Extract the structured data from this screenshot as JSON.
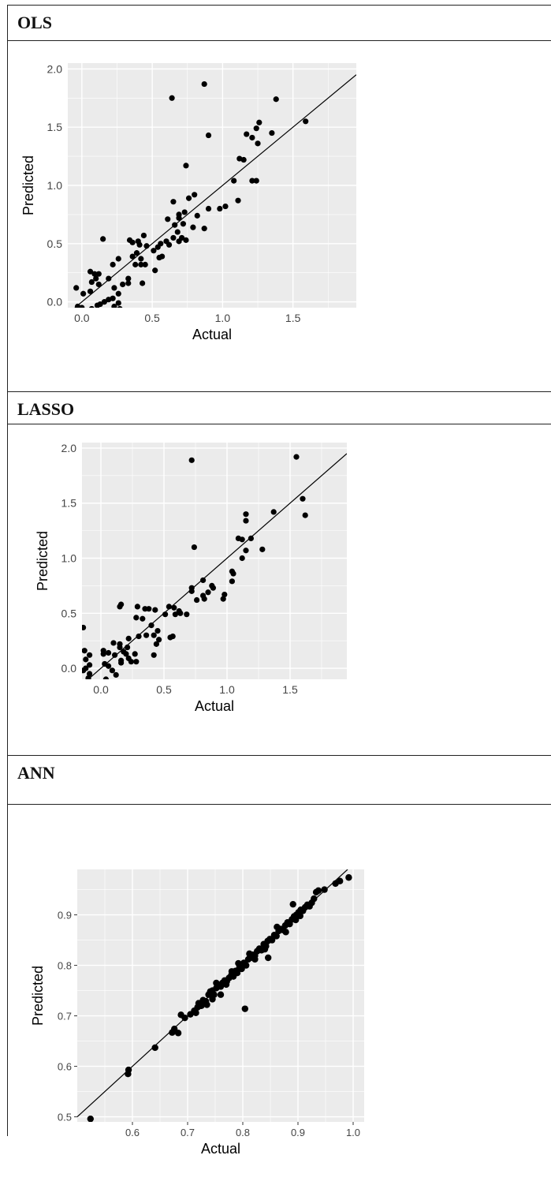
{
  "panels": [
    {
      "label": "OLS"
    },
    {
      "label": "LASSO"
    },
    {
      "label": "ANN"
    }
  ],
  "chart_data": [
    {
      "type": "scatter",
      "xlabel": "Actual",
      "ylabel": "Predicted",
      "xticks": [
        "0.0",
        "0.5",
        "1.0",
        "1.5"
      ],
      "yticks": [
        "0.0",
        "0.5",
        "1.0",
        "1.5",
        "2.0"
      ],
      "xlim": [
        -0.1,
        1.95
      ],
      "ylim": [
        -0.05,
        2.05
      ],
      "grid": true,
      "reference_line": "y = x",
      "points": [
        [
          0.87,
          1.87
        ],
        [
          0.64,
          1.75
        ],
        [
          1.38,
          1.74
        ],
        [
          1.59,
          1.55
        ],
        [
          1.26,
          1.54
        ],
        [
          1.24,
          1.49
        ],
        [
          1.35,
          1.45
        ],
        [
          0.9,
          1.43
        ],
        [
          1.17,
          1.44
        ],
        [
          1.21,
          1.41
        ],
        [
          1.25,
          1.36
        ],
        [
          1.12,
          1.23
        ],
        [
          1.15,
          1.22
        ],
        [
          0.74,
          1.17
        ],
        [
          1.08,
          1.04
        ],
        [
          1.21,
          1.04
        ],
        [
          1.24,
          1.04
        ],
        [
          0.8,
          0.92
        ],
        [
          0.76,
          0.89
        ],
        [
          1.11,
          0.87
        ],
        [
          0.65,
          0.86
        ],
        [
          1.02,
          0.82
        ],
        [
          0.9,
          0.8
        ],
        [
          0.98,
          0.8
        ],
        [
          0.73,
          0.77
        ],
        [
          0.69,
          0.75
        ],
        [
          0.82,
          0.74
        ],
        [
          0.69,
          0.72
        ],
        [
          0.61,
          0.71
        ],
        [
          0.72,
          0.67
        ],
        [
          0.66,
          0.66
        ],
        [
          0.79,
          0.64
        ],
        [
          0.87,
          0.63
        ],
        [
          0.68,
          0.6
        ],
        [
          0.65,
          0.55
        ],
        [
          0.71,
          0.55
        ],
        [
          0.6,
          0.52
        ],
        [
          0.56,
          0.5
        ],
        [
          0.69,
          0.52
        ],
        [
          0.74,
          0.53
        ],
        [
          0.44,
          0.57
        ],
        [
          0.15,
          0.54
        ],
        [
          0.34,
          0.53
        ],
        [
          0.4,
          0.52
        ],
        [
          0.36,
          0.51
        ],
        [
          0.41,
          0.49
        ],
        [
          0.46,
          0.48
        ],
        [
          0.62,
          0.49
        ],
        [
          0.54,
          0.47
        ],
        [
          0.51,
          0.44
        ],
        [
          0.39,
          0.42
        ],
        [
          0.36,
          0.39
        ],
        [
          0.42,
          0.37
        ],
        [
          0.55,
          0.38
        ],
        [
          0.57,
          0.39
        ],
        [
          0.26,
          0.37
        ],
        [
          0.22,
          0.32
        ],
        [
          0.42,
          0.32
        ],
        [
          0.45,
          0.32
        ],
        [
          0.38,
          0.32
        ],
        [
          0.52,
          0.27
        ],
        [
          0.06,
          0.26
        ],
        [
          0.09,
          0.24
        ],
        [
          0.12,
          0.24
        ],
        [
          0.1,
          0.2
        ],
        [
          0.33,
          0.2
        ],
        [
          0.19,
          0.2
        ],
        [
          0.07,
          0.17
        ],
        [
          0.12,
          0.15
        ],
        [
          0.43,
          0.16
        ],
        [
          0.29,
          0.15
        ],
        [
          0.33,
          0.16
        ],
        [
          0.23,
          0.12
        ],
        [
          -0.04,
          0.12
        ],
        [
          0.06,
          0.09
        ],
        [
          0.01,
          0.07
        ],
        [
          0.26,
          0.07
        ],
        [
          0.22,
          0.03
        ],
        [
          0.19,
          0.02
        ],
        [
          0.16,
          0.0
        ],
        [
          0.26,
          -0.01
        ],
        [
          0.13,
          -0.02
        ],
        [
          0.11,
          -0.03
        ],
        [
          -0.03,
          -0.04
        ],
        [
          0.07,
          -0.06
        ],
        [
          0.23,
          -0.04
        ],
        [
          0.0,
          -0.05
        ],
        [
          0.27,
          -0.06
        ]
      ]
    },
    {
      "type": "scatter",
      "xlabel": "Actual",
      "ylabel": "Predicted",
      "xticks": [
        "0.0",
        "0.5",
        "1.0",
        "1.5"
      ],
      "yticks": [
        "0.0",
        "0.5",
        "1.0",
        "1.5",
        "2.0"
      ],
      "xlim": [
        -0.15,
        1.95
      ],
      "ylim": [
        -0.1,
        2.05
      ],
      "grid": true,
      "reference_line": "y = x",
      "points": [
        [
          0.72,
          1.89
        ],
        [
          1.55,
          1.92
        ],
        [
          1.6,
          1.54
        ],
        [
          1.62,
          1.39
        ],
        [
          1.37,
          1.42
        ],
        [
          1.15,
          1.4
        ],
        [
          1.15,
          1.34
        ],
        [
          1.19,
          1.18
        ],
        [
          1.09,
          1.18
        ],
        [
          1.12,
          1.17
        ],
        [
          1.28,
          1.08
        ],
        [
          1.15,
          1.07
        ],
        [
          0.74,
          1.1
        ],
        [
          1.12,
          1.0
        ],
        [
          1.04,
          0.88
        ],
        [
          1.05,
          0.86
        ],
        [
          1.04,
          0.79
        ],
        [
          0.98,
          0.67
        ],
        [
          0.97,
          0.63
        ],
        [
          0.81,
          0.8
        ],
        [
          0.88,
          0.75
        ],
        [
          0.89,
          0.73
        ],
        [
          0.85,
          0.69
        ],
        [
          0.81,
          0.66
        ],
        [
          0.82,
          0.63
        ],
        [
          0.72,
          0.73
        ],
        [
          0.72,
          0.7
        ],
        [
          0.76,
          0.62
        ],
        [
          0.16,
          0.58
        ],
        [
          0.15,
          0.56
        ],
        [
          0.29,
          0.56
        ],
        [
          0.35,
          0.54
        ],
        [
          0.38,
          0.54
        ],
        [
          0.43,
          0.53
        ],
        [
          0.54,
          0.56
        ],
        [
          0.58,
          0.55
        ],
        [
          0.62,
          0.52
        ],
        [
          0.59,
          0.49
        ],
        [
          0.63,
          0.5
        ],
        [
          0.68,
          0.49
        ],
        [
          0.51,
          0.49
        ],
        [
          0.28,
          0.46
        ],
        [
          0.33,
          0.45
        ],
        [
          0.4,
          0.39
        ],
        [
          0.42,
          0.3
        ],
        [
          0.45,
          0.34
        ],
        [
          0.36,
          0.3
        ],
        [
          0.46,
          0.26
        ],
        [
          0.55,
          0.28
        ],
        [
          0.57,
          0.29
        ],
        [
          0.3,
          0.29
        ],
        [
          0.22,
          0.27
        ],
        [
          0.44,
          0.22
        ],
        [
          0.1,
          0.23
        ],
        [
          0.15,
          0.22
        ],
        [
          0.15,
          0.19
        ],
        [
          0.21,
          0.19
        ],
        [
          0.18,
          0.15
        ],
        [
          0.2,
          0.13
        ],
        [
          0.11,
          0.12
        ],
        [
          0.27,
          0.13
        ],
        [
          0.42,
          0.12
        ],
        [
          0.22,
          0.09
        ],
        [
          0.16,
          0.07
        ],
        [
          0.24,
          0.06
        ],
        [
          0.28,
          0.06
        ],
        [
          0.02,
          0.16
        ],
        [
          0.02,
          0.13
        ],
        [
          0.06,
          0.14
        ],
        [
          -0.13,
          0.16
        ],
        [
          -0.09,
          0.12
        ],
        [
          -0.12,
          0.08
        ],
        [
          -0.09,
          0.03
        ],
        [
          -0.12,
          0.0
        ],
        [
          0.03,
          0.04
        ],
        [
          0.06,
          0.02
        ],
        [
          0.16,
          0.05
        ],
        [
          -0.14,
          0.37
        ],
        [
          -0.14,
          -0.02
        ],
        [
          -0.09,
          -0.05
        ],
        [
          0.12,
          -0.06
        ],
        [
          0.09,
          -0.02
        ],
        [
          -0.1,
          -0.09
        ],
        [
          0.04,
          -0.1
        ]
      ]
    },
    {
      "type": "scatter",
      "xlabel": "Actual",
      "ylabel": "Predicted",
      "xticks": [
        "0.6",
        "0.7",
        "0.8",
        "0.9",
        "1.0"
      ],
      "yticks": [
        "0.5",
        "0.6",
        "0.7",
        "0.8",
        "0.9"
      ],
      "xlim": [
        0.5,
        1.02
      ],
      "ylim": [
        0.49,
        0.99
      ],
      "grid": true,
      "reference_line": "y = x",
      "points": [
        [
          0.524,
          0.496
        ],
        [
          0.592,
          0.585
        ],
        [
          0.593,
          0.593
        ],
        [
          0.641,
          0.637
        ],
        [
          0.672,
          0.667
        ],
        [
          0.676,
          0.674
        ],
        [
          0.683,
          0.666
        ],
        [
          0.688,
          0.702
        ],
        [
          0.695,
          0.696
        ],
        [
          0.705,
          0.703
        ],
        [
          0.712,
          0.71
        ],
        [
          0.718,
          0.717
        ],
        [
          0.72,
          0.725
        ],
        [
          0.725,
          0.72
        ],
        [
          0.728,
          0.731
        ],
        [
          0.733,
          0.729
        ],
        [
          0.738,
          0.742
        ],
        [
          0.741,
          0.748
        ],
        [
          0.745,
          0.75
        ],
        [
          0.748,
          0.742
        ],
        [
          0.752,
          0.755
        ],
        [
          0.756,
          0.761
        ],
        [
          0.76,
          0.758
        ],
        [
          0.763,
          0.765
        ],
        [
          0.767,
          0.77
        ],
        [
          0.771,
          0.768
        ],
        [
          0.775,
          0.775
        ],
        [
          0.779,
          0.78
        ],
        [
          0.783,
          0.778
        ],
        [
          0.787,
          0.789
        ],
        [
          0.79,
          0.785
        ],
        [
          0.794,
          0.796
        ],
        [
          0.798,
          0.793
        ],
        [
          0.802,
          0.805
        ],
        [
          0.806,
          0.8
        ],
        [
          0.804,
          0.714
        ],
        [
          0.81,
          0.812
        ],
        [
          0.814,
          0.815
        ],
        [
          0.818,
          0.821
        ],
        [
          0.822,
          0.819
        ],
        [
          0.826,
          0.828
        ],
        [
          0.83,
          0.833
        ],
        [
          0.834,
          0.83
        ],
        [
          0.838,
          0.842
        ],
        [
          0.842,
          0.838
        ],
        [
          0.845,
          0.848
        ],
        [
          0.849,
          0.852
        ],
        [
          0.846,
          0.815
        ],
        [
          0.853,
          0.85
        ],
        [
          0.857,
          0.86
        ],
        [
          0.861,
          0.858
        ],
        [
          0.865,
          0.868
        ],
        [
          0.869,
          0.872
        ],
        [
          0.873,
          0.87
        ],
        [
          0.877,
          0.879
        ],
        [
          0.881,
          0.885
        ],
        [
          0.885,
          0.882
        ],
        [
          0.889,
          0.891
        ],
        [
          0.893,
          0.897
        ],
        [
          0.897,
          0.9
        ],
        [
          0.891,
          0.921
        ],
        [
          0.901,
          0.905
        ],
        [
          0.905,
          0.91
        ],
        [
          0.909,
          0.908
        ],
        [
          0.913,
          0.915
        ],
        [
          0.917,
          0.92
        ],
        [
          0.921,
          0.917
        ],
        [
          0.925,
          0.924
        ],
        [
          0.929,
          0.932
        ],
        [
          0.933,
          0.945
        ],
        [
          0.937,
          0.948
        ],
        [
          0.948,
          0.95
        ],
        [
          0.968,
          0.962
        ],
        [
          0.976,
          0.967
        ],
        [
          0.992,
          0.974
        ],
        [
          0.76,
          0.742
        ],
        [
          0.77,
          0.762
        ],
        [
          0.792,
          0.804
        ],
        [
          0.812,
          0.823
        ],
        [
          0.84,
          0.832
        ],
        [
          0.862,
          0.876
        ],
        [
          0.878,
          0.866
        ],
        [
          0.896,
          0.89
        ],
        [
          0.904,
          0.898
        ],
        [
          0.745,
          0.733
        ],
        [
          0.715,
          0.706
        ],
        [
          0.735,
          0.722
        ],
        [
          0.752,
          0.765
        ],
        [
          0.78,
          0.788
        ],
        [
          0.822,
          0.812
        ]
      ]
    }
  ]
}
